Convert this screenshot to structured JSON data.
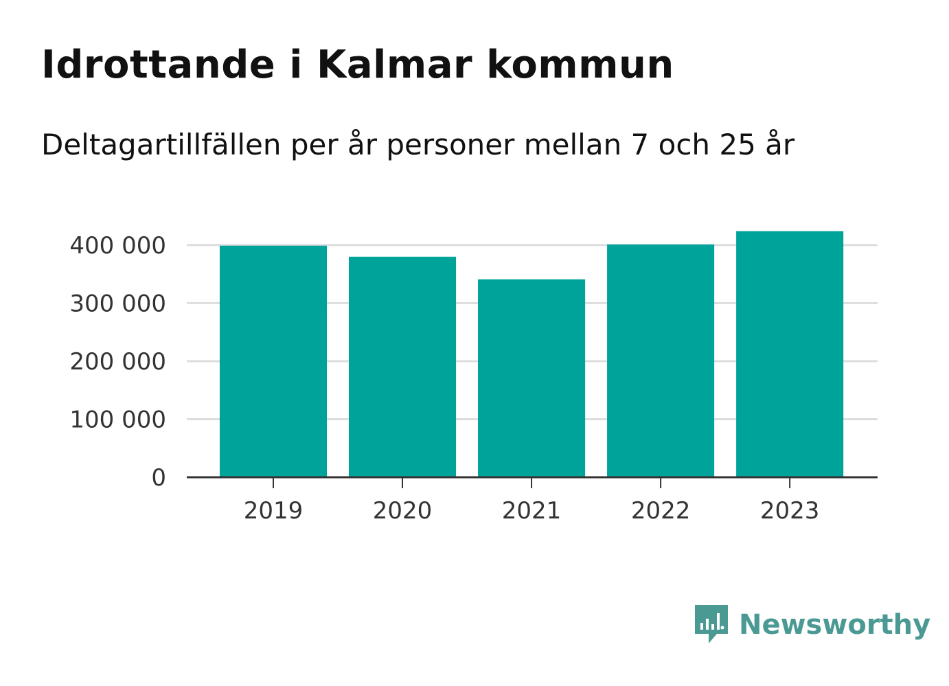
{
  "header": {
    "title": "Idrottande i Kalmar kommun",
    "subtitle": "Deltagartillfällen per år personer mellan 7 och 25 år"
  },
  "chart_data": {
    "type": "bar",
    "title": "Idrottande i Kalmar kommun",
    "subtitle": "Deltagartillfällen per år personer mellan 7 och 25 år",
    "categories": [
      "2019",
      "2020",
      "2021",
      "2022",
      "2023"
    ],
    "values": [
      399000,
      380000,
      341000,
      401000,
      424000
    ],
    "ylim": [
      0,
      420000
    ],
    "yticks": [
      0,
      100000,
      200000,
      300000,
      400000
    ],
    "ytick_labels": [
      "0",
      "100 000",
      "200 000",
      "300 000",
      "400 000"
    ],
    "xlabel": "",
    "ylabel": "",
    "grid": true,
    "bar_color": "#00a39a",
    "grid_color": "#dddddd",
    "axis_color": "#333333"
  },
  "brand": {
    "name": "Newsworthy",
    "icon": "newsworthy-logo-icon",
    "color": "#4a9a93"
  }
}
